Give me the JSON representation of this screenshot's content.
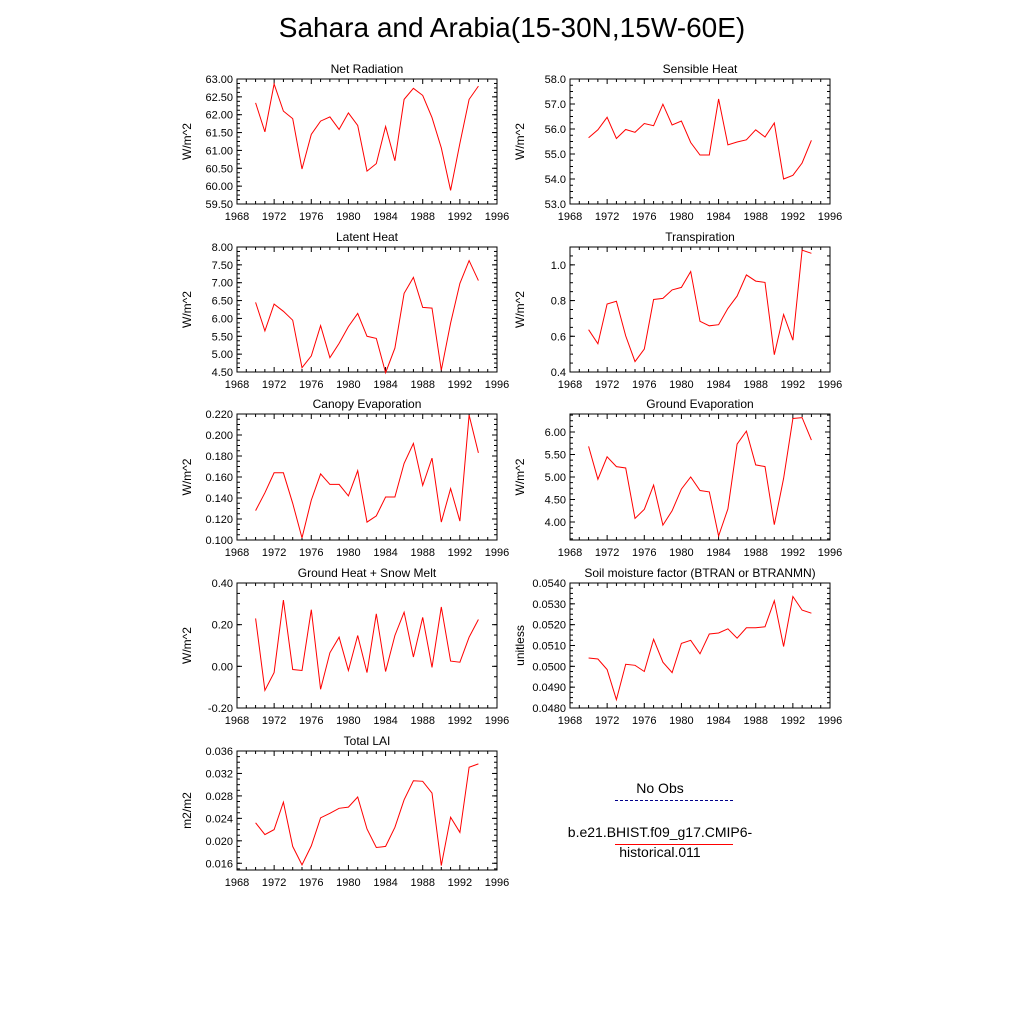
{
  "title": "Sahara and Arabia(15-30N,15W-60E)",
  "colors": {
    "series": "#ff0000",
    "obs": "#00008b",
    "axis": "#000000"
  },
  "legend": {
    "entries": [
      {
        "label": "No Obs",
        "color": "#00008b",
        "style": "dashed"
      },
      {
        "label": "b.e21.BHIST.f09_g17.CMIP6-historical.011",
        "color": "#ff0000",
        "style": "solid"
      }
    ]
  },
  "chart_data": [
    {
      "type": "line",
      "title": "Net Radiation",
      "ylabel": "W/m^2",
      "xlim": [
        1968,
        1996
      ],
      "xticks": [
        "1968",
        "1972",
        "1976",
        "1980",
        "1984",
        "1988",
        "1992",
        "1996"
      ],
      "ylim": [
        59.5,
        63.0
      ],
      "yticks": [
        "59.50",
        "60.00",
        "60.50",
        "61.00",
        "61.50",
        "62.00",
        "62.50",
        "63.00"
      ],
      "x": [
        1970,
        1971,
        1972,
        1973,
        1974,
        1975,
        1976,
        1977,
        1978,
        1979,
        1980,
        1981,
        1982,
        1983,
        1984,
        1985,
        1986,
        1987,
        1988,
        1989,
        1990,
        1991,
        1992,
        1993,
        1994
      ],
      "series": [
        {
          "values": [
            62.33,
            61.52,
            62.86,
            62.1,
            61.89,
            60.48,
            61.45,
            61.82,
            61.94,
            61.59,
            62.05,
            61.7,
            60.42,
            60.63,
            61.67,
            60.71,
            62.43,
            62.74,
            62.54,
            61.92,
            61.07,
            59.88,
            61.2,
            62.43,
            62.8
          ]
        }
      ]
    },
    {
      "type": "line",
      "title": "Sensible Heat",
      "ylabel": "W/m^2",
      "xlim": [
        1968,
        1996
      ],
      "xticks": [
        "1968",
        "1972",
        "1976",
        "1980",
        "1984",
        "1988",
        "1992",
        "1996"
      ],
      "ylim": [
        53.0,
        58.0
      ],
      "yticks": [
        "53.0",
        "54.0",
        "55.0",
        "56.0",
        "57.0",
        "58.0"
      ],
      "x": [
        1970,
        1971,
        1972,
        1973,
        1974,
        1975,
        1976,
        1977,
        1978,
        1979,
        1980,
        1981,
        1982,
        1983,
        1984,
        1985,
        1986,
        1987,
        1988,
        1989,
        1990,
        1991,
        1992,
        1993,
        1994
      ],
      "series": [
        {
          "values": [
            55.65,
            55.97,
            56.47,
            55.62,
            55.98,
            55.87,
            56.22,
            56.13,
            56.99,
            56.16,
            56.32,
            55.46,
            54.96,
            54.96,
            57.2,
            55.37,
            55.48,
            55.57,
            55.97,
            55.68,
            56.24,
            54.0,
            54.15,
            54.64,
            55.55
          ]
        }
      ]
    },
    {
      "type": "line",
      "title": "Latent Heat",
      "ylabel": "W/m^2",
      "xlim": [
        1968,
        1996
      ],
      "xticks": [
        "1968",
        "1972",
        "1976",
        "1980",
        "1984",
        "1988",
        "1992",
        "1996"
      ],
      "ylim": [
        4.5,
        8.0
      ],
      "yticks": [
        "4.50",
        "5.00",
        "5.50",
        "6.00",
        "6.50",
        "7.00",
        "7.50",
        "8.00"
      ],
      "x": [
        1970,
        1971,
        1972,
        1973,
        1974,
        1975,
        1976,
        1977,
        1978,
        1979,
        1980,
        1981,
        1982,
        1983,
        1984,
        1985,
        1986,
        1987,
        1988,
        1989,
        1990,
        1991,
        1992,
        1993,
        1994
      ],
      "series": [
        {
          "values": [
            6.45,
            5.65,
            6.4,
            6.2,
            5.95,
            4.62,
            4.95,
            5.8,
            4.9,
            5.3,
            5.77,
            6.14,
            5.5,
            5.44,
            4.48,
            5.17,
            6.7,
            7.15,
            6.31,
            6.29,
            4.55,
            5.87,
            6.98,
            7.62,
            7.06
          ]
        }
      ]
    },
    {
      "type": "line",
      "title": "Transpiration",
      "ylabel": "W/m^2",
      "xlim": [
        1968,
        1996
      ],
      "xticks": [
        "1968",
        "1972",
        "1976",
        "1980",
        "1984",
        "1988",
        "1992",
        "1996"
      ],
      "ylim": [
        0.4,
        1.1
      ],
      "yticks": [
        "0.4",
        "0.6",
        "0.8",
        "1.0"
      ],
      "x": [
        1970,
        1971,
        1972,
        1973,
        1974,
        1975,
        1976,
        1977,
        1978,
        1979,
        1980,
        1981,
        1982,
        1983,
        1984,
        1985,
        1986,
        1987,
        1988,
        1989,
        1990,
        1991,
        1992,
        1993,
        1994
      ],
      "series": [
        {
          "values": [
            0.637,
            0.558,
            0.781,
            0.796,
            0.602,
            0.458,
            0.528,
            0.806,
            0.812,
            0.86,
            0.874,
            0.963,
            0.684,
            0.659,
            0.665,
            0.756,
            0.825,
            0.944,
            0.909,
            0.902,
            0.497,
            0.722,
            0.578,
            1.082,
            1.065
          ]
        }
      ]
    },
    {
      "type": "line",
      "title": "Canopy Evaporation",
      "ylabel": "W/m^2",
      "xlim": [
        1968,
        1996
      ],
      "xticks": [
        "1968",
        "1972",
        "1976",
        "1980",
        "1984",
        "1988",
        "1992",
        "1996"
      ],
      "ylim": [
        0.1,
        0.22
      ],
      "yticks": [
        "0.100",
        "0.120",
        "0.140",
        "0.160",
        "0.180",
        "0.200",
        "0.220"
      ],
      "x": [
        1970,
        1971,
        1972,
        1973,
        1974,
        1975,
        1976,
        1977,
        1978,
        1979,
        1980,
        1981,
        1982,
        1983,
        1984,
        1985,
        1986,
        1987,
        1988,
        1989,
        1990,
        1991,
        1992,
        1993,
        1994
      ],
      "series": [
        {
          "values": [
            0.128,
            0.145,
            0.164,
            0.164,
            0.135,
            0.102,
            0.138,
            0.163,
            0.153,
            0.153,
            0.142,
            0.166,
            0.117,
            0.123,
            0.141,
            0.141,
            0.173,
            0.192,
            0.152,
            0.178,
            0.117,
            0.149,
            0.118,
            0.219,
            0.183
          ]
        }
      ]
    },
    {
      "type": "line",
      "title": "Ground Evaporation",
      "ylabel": "W/m^2",
      "xlim": [
        1968,
        1996
      ],
      "xticks": [
        "1968",
        "1972",
        "1976",
        "1980",
        "1984",
        "1988",
        "1992",
        "1996"
      ],
      "ylim": [
        3.6,
        6.4
      ],
      "yticks": [
        "4.00",
        "4.50",
        "5.00",
        "5.50",
        "6.00"
      ],
      "x": [
        1970,
        1971,
        1972,
        1973,
        1974,
        1975,
        1976,
        1977,
        1978,
        1979,
        1980,
        1981,
        1982,
        1983,
        1984,
        1985,
        1986,
        1987,
        1988,
        1989,
        1990,
        1991,
        1992,
        1993,
        1994
      ],
      "series": [
        {
          "values": [
            5.68,
            4.95,
            5.45,
            5.23,
            5.2,
            4.08,
            4.28,
            4.82,
            3.93,
            4.25,
            4.73,
            5.0,
            4.7,
            4.67,
            3.69,
            4.29,
            5.73,
            6.02,
            5.27,
            5.23,
            3.94,
            4.97,
            6.3,
            6.32,
            5.82
          ]
        }
      ]
    },
    {
      "type": "line",
      "title": "Ground Heat + Snow Melt",
      "ylabel": "W/m^2",
      "xlim": [
        1968,
        1996
      ],
      "xticks": [
        "1968",
        "1972",
        "1976",
        "1980",
        "1984",
        "1988",
        "1992",
        "1996"
      ],
      "ylim": [
        -0.2,
        0.4
      ],
      "yticks": [
        "-0.20",
        "0.00",
        "0.20",
        "0.40"
      ],
      "x": [
        1970,
        1971,
        1972,
        1973,
        1974,
        1975,
        1976,
        1977,
        1978,
        1979,
        1980,
        1981,
        1982,
        1983,
        1984,
        1985,
        1986,
        1987,
        1988,
        1989,
        1990,
        1991,
        1992,
        1993,
        1994
      ],
      "series": [
        {
          "values": [
            0.23,
            -0.115,
            -0.03,
            0.318,
            -0.015,
            -0.02,
            0.272,
            -0.11,
            0.065,
            0.14,
            -0.02,
            0.148,
            -0.03,
            0.252,
            -0.025,
            0.148,
            0.26,
            0.045,
            0.235,
            -0.005,
            0.285,
            0.025,
            0.02,
            0.14,
            0.225
          ]
        }
      ]
    },
    {
      "type": "line",
      "title": "Soil moisture factor (BTRAN or BTRANMN)",
      "ylabel": "unitless",
      "xlim": [
        1968,
        1996
      ],
      "xticks": [
        "1968",
        "1972",
        "1976",
        "1980",
        "1984",
        "1988",
        "1992",
        "1996"
      ],
      "ylim": [
        0.048,
        0.054
      ],
      "yticks": [
        "0.0480",
        "0.0490",
        "0.0500",
        "0.0510",
        "0.0520",
        "0.0530",
        "0.0540"
      ],
      "x": [
        1970,
        1971,
        1972,
        1973,
        1974,
        1975,
        1976,
        1977,
        1978,
        1979,
        1980,
        1981,
        1982,
        1983,
        1984,
        1985,
        1986,
        1987,
        1988,
        1989,
        1990,
        1991,
        1992,
        1993,
        1994
      ],
      "series": [
        {
          "values": [
            0.0504,
            0.05035,
            0.04985,
            0.0484,
            0.0501,
            0.05005,
            0.04975,
            0.0513,
            0.0502,
            0.0497,
            0.0511,
            0.05125,
            0.0506,
            0.05155,
            0.0516,
            0.0518,
            0.05135,
            0.05185,
            0.05185,
            0.0519,
            0.05315,
            0.05095,
            0.05335,
            0.0527,
            0.05255
          ]
        }
      ]
    },
    {
      "type": "line",
      "title": "Total LAI",
      "ylabel": "m2/m2",
      "xlim": [
        1968,
        1996
      ],
      "xticks": [
        "1968",
        "1972",
        "1976",
        "1980",
        "1984",
        "1988",
        "1992",
        "1996"
      ],
      "ylim": [
        0.0148,
        0.036
      ],
      "yticks": [
        "0.016",
        "0.020",
        "0.024",
        "0.028",
        "0.032",
        "0.036"
      ],
      "x": [
        1970,
        1971,
        1972,
        1973,
        1974,
        1975,
        1976,
        1977,
        1978,
        1979,
        1980,
        1981,
        1982,
        1983,
        1984,
        1985,
        1986,
        1987,
        1988,
        1989,
        1990,
        1991,
        1992,
        1993,
        1994
      ],
      "series": [
        {
          "values": [
            0.0232,
            0.0211,
            0.022,
            0.0269,
            0.019,
            0.0157,
            0.0191,
            0.0241,
            0.0249,
            0.0258,
            0.026,
            0.0278,
            0.0221,
            0.0188,
            0.019,
            0.0224,
            0.0273,
            0.0307,
            0.0306,
            0.0285,
            0.0156,
            0.0242,
            0.0215,
            0.0331,
            0.0337
          ]
        }
      ]
    }
  ]
}
